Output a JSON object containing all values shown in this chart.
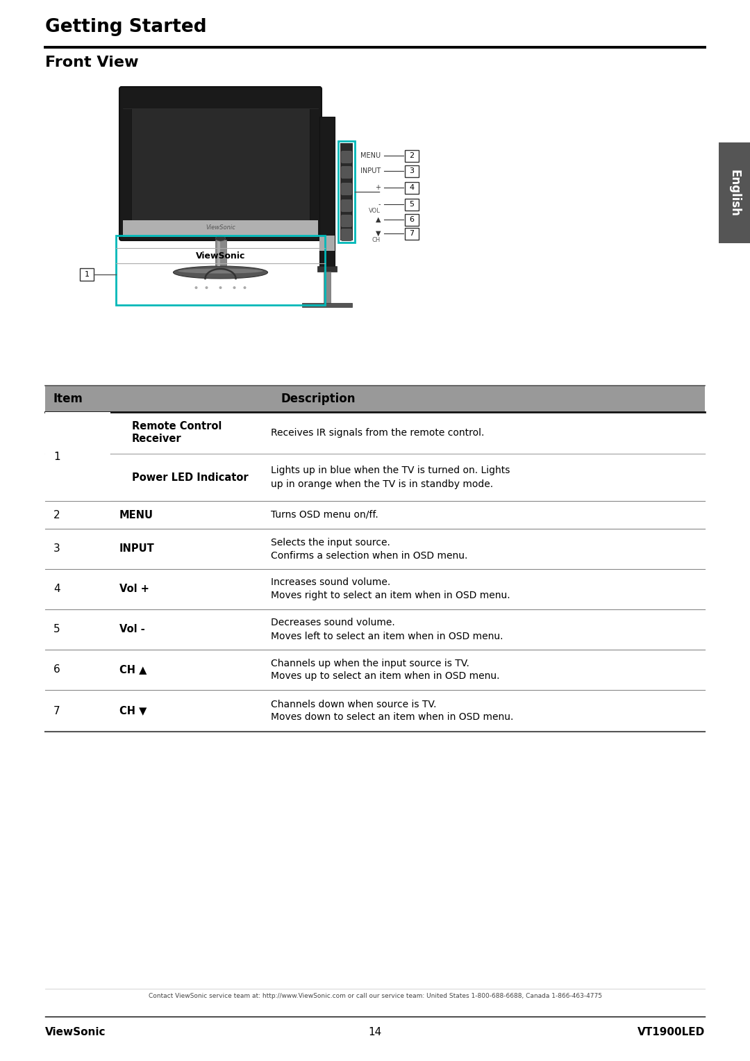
{
  "title": "Getting Started",
  "section": "Front View",
  "bg_color": "#ffffff",
  "table_header_bg": "#a0a0a0",
  "table_border_dark": "#000000",
  "table_border_light": "#aaaaaa",
  "footer_text": "Contact ViewSonic service team at: http://www.ViewSonic.com or call our service team: United States 1-800-688-6688, Canada 1-866-463-4775",
  "footer_left": "ViewSonic",
  "footer_center": "14",
  "footer_right": "VT1900LED",
  "rows": [
    {
      "item": "1",
      "label": "Remote Control\nReceiver",
      "desc": "Receives IR signals from the remote control.",
      "bold_label": true,
      "span": true
    },
    {
      "item": "",
      "label": "Power LED Indicator",
      "desc": "Lights up in blue when the TV is turned on. Lights\nup in orange when the TV is in standby mode.",
      "bold_label": true,
      "span": true
    },
    {
      "item": "2",
      "label": "MENU",
      "desc": "Turns OSD menu on/ff.",
      "bold_label": true,
      "span": false
    },
    {
      "item": "3",
      "label": "INPUT",
      "desc": "Selects the input source.\nConfirms a selection when in OSD menu.",
      "bold_label": true,
      "span": false
    },
    {
      "item": "4",
      "label": "Vol +",
      "desc": "Increases sound volume.\nMoves right to select an item when in OSD menu.",
      "bold_label": true,
      "span": false
    },
    {
      "item": "5",
      "label": "Vol -",
      "desc": "Decreases sound volume.\nMoves left to select an item when in OSD menu.",
      "bold_label": true,
      "span": false
    },
    {
      "item": "6",
      "label": "CH ▲",
      "desc": "Channels up when the input source is TV.\nMoves up to select an item when in OSD menu.",
      "bold_label": true,
      "span": false
    },
    {
      "item": "7",
      "label": "CH ▼",
      "desc": "Channels down when source is TV.\nMoves down to select an item when in OSD menu.",
      "bold_label": true,
      "span": false
    }
  ],
  "teal_color": "#00b8b8",
  "monitor_bezel_color": "#1a1a1a",
  "monitor_screen_color": "#2a2a2a",
  "monitor_bottom_bar_color": "#c8c8c8",
  "stand_color": "#888888",
  "stand_base_color": "#555555",
  "button_color": "#444444",
  "english_tab_color": "#555555",
  "callout_line_color": "#555555"
}
